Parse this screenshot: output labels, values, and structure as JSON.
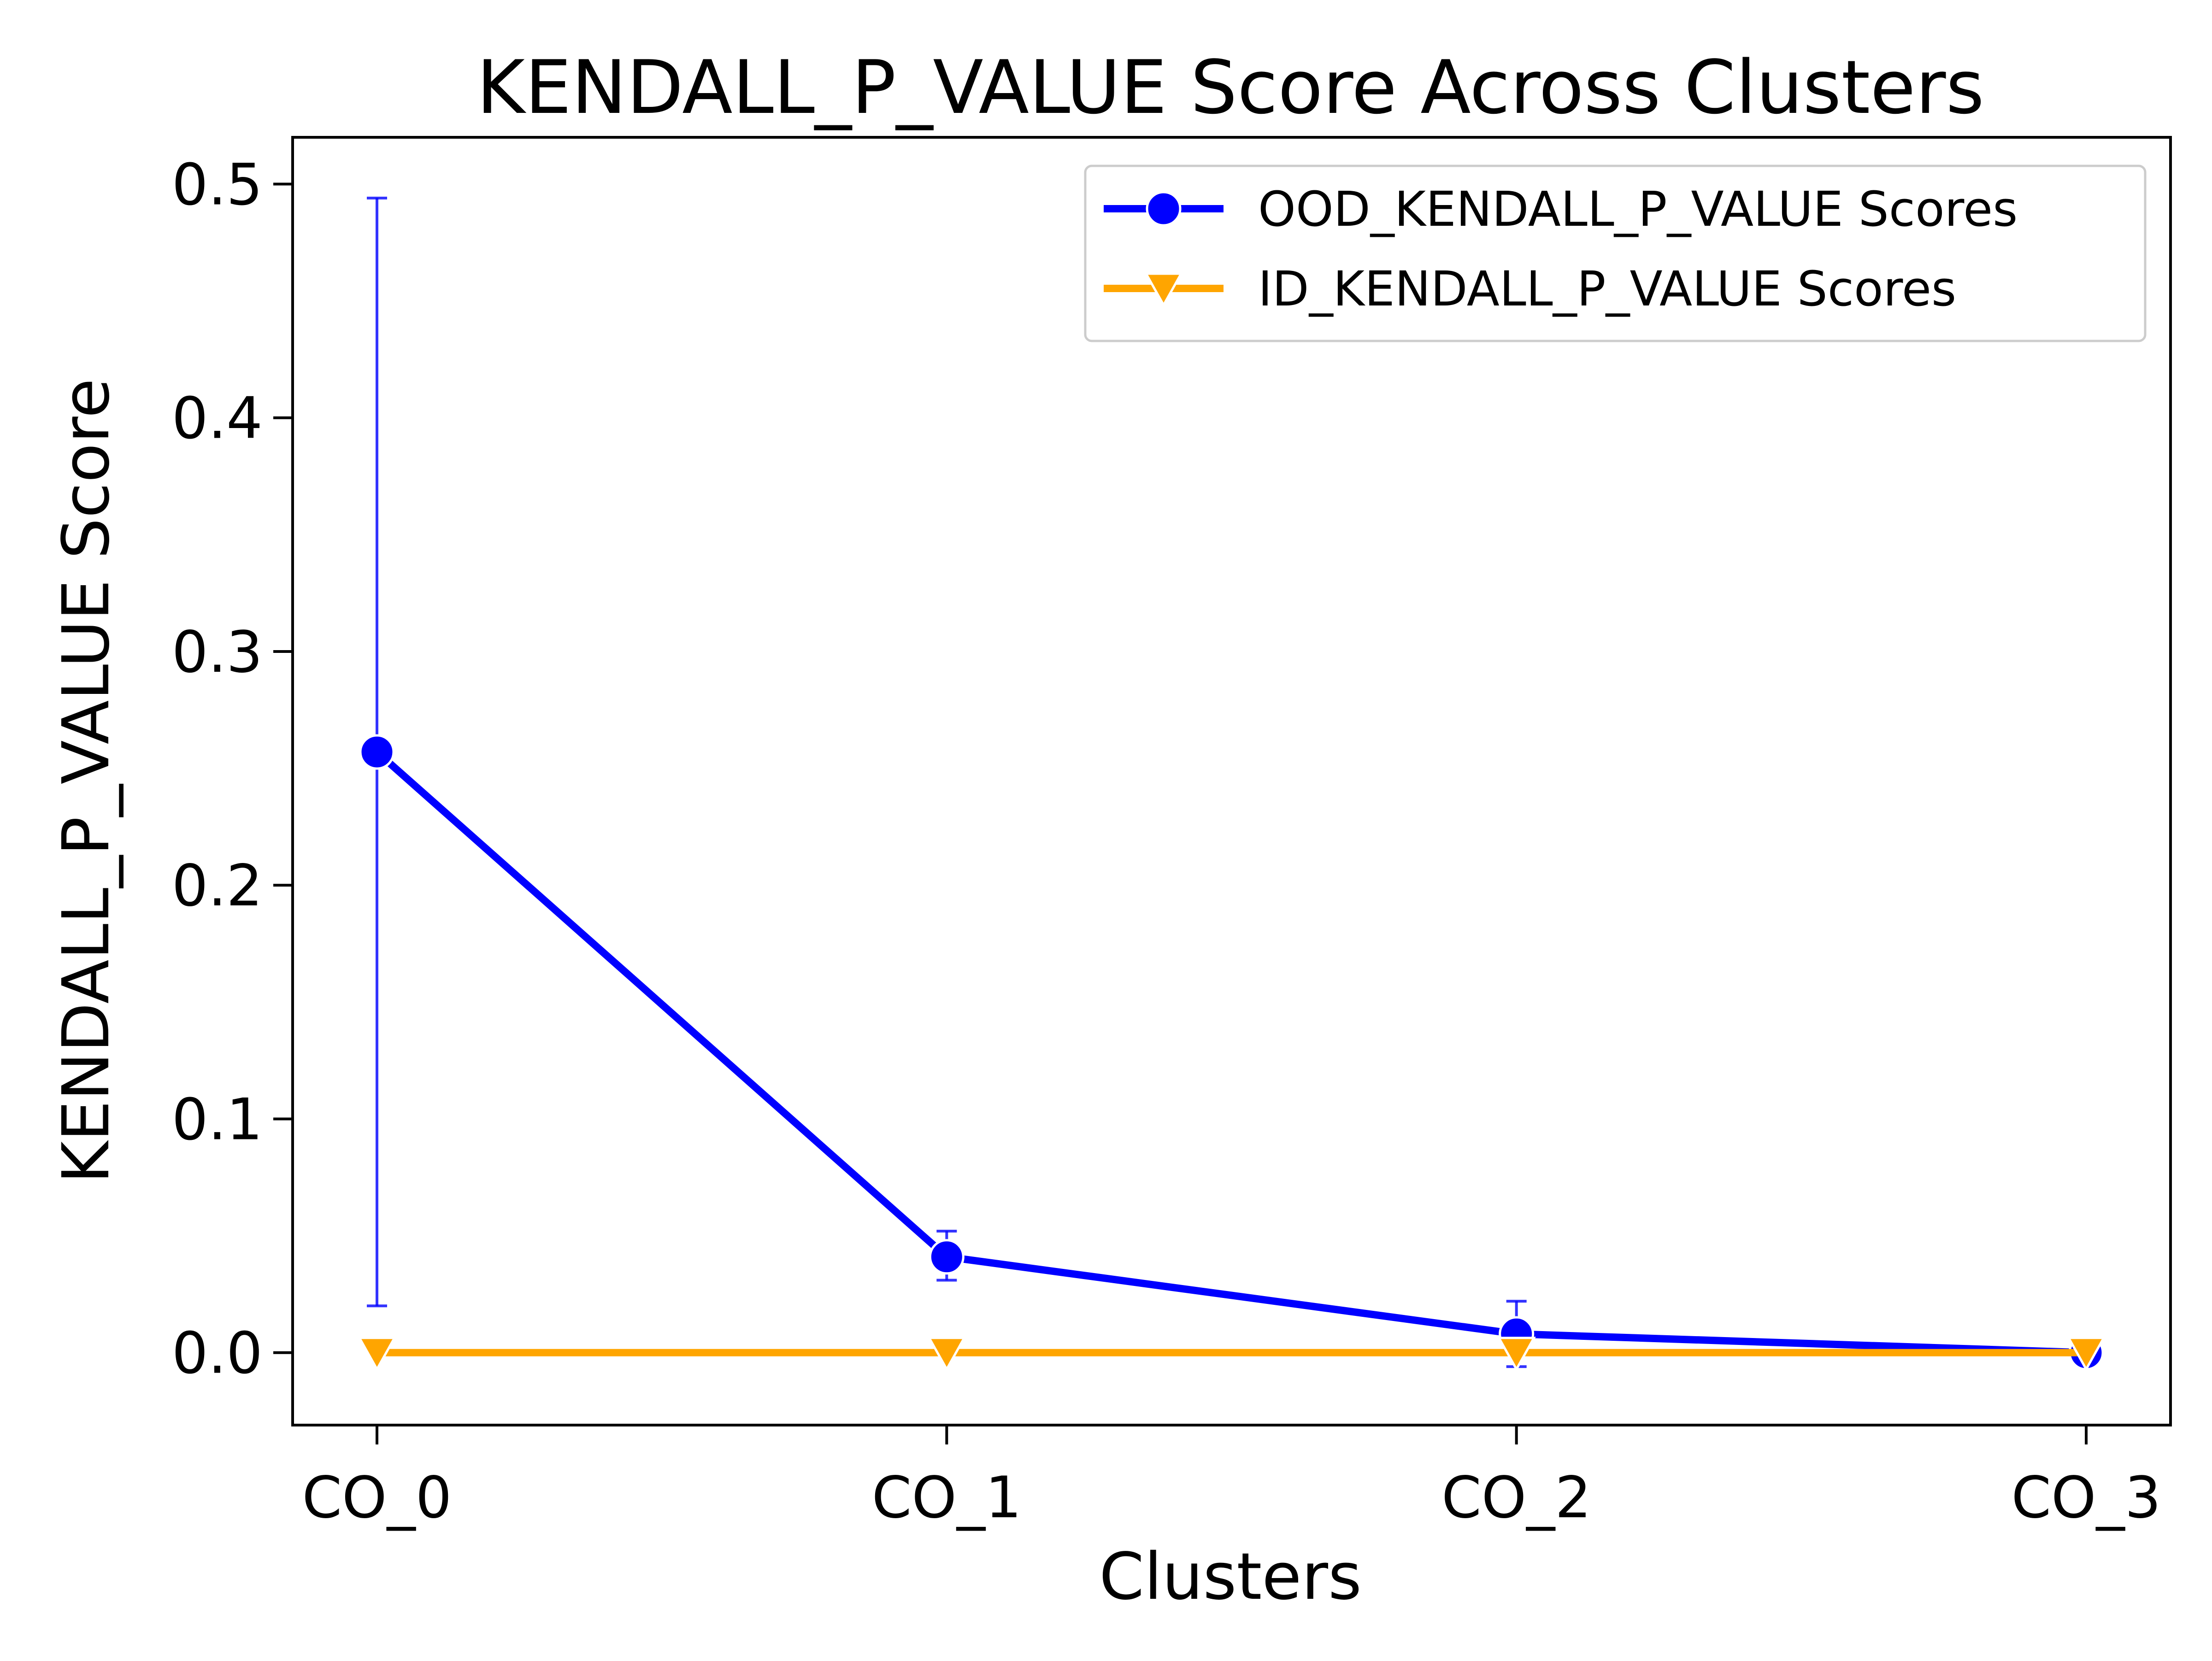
{
  "chart_data": {
    "type": "line",
    "title": "KENDALL_P_VALUE Score Across Clusters",
    "xlabel": "Clusters",
    "ylabel": "KENDALL_P_VALUE Score",
    "categories": [
      "CO_0",
      "CO_1",
      "CO_2",
      "CO_3"
    ],
    "ylim": [
      -0.031,
      0.52
    ],
    "yticks": [
      0.0,
      0.1,
      0.2,
      0.3,
      0.4,
      0.5
    ],
    "ytick_labels": [
      "0.0",
      "0.1",
      "0.2",
      "0.3",
      "0.4",
      "0.5"
    ],
    "grid": false,
    "legend_position": "top-right",
    "series": [
      {
        "name": "OOD_KENDALL_P_VALUE Scores",
        "color": "#0000ff",
        "marker": "circle",
        "values": [
          0.257,
          0.041,
          0.008,
          0.0
        ],
        "error_low": [
          0.02,
          0.031,
          -0.006,
          0.0
        ],
        "error_high": [
          0.494,
          0.052,
          0.022,
          0.0
        ]
      },
      {
        "name": "ID_KENDALL_P_VALUE Scores",
        "color": "#ffa500",
        "marker": "triangle-down",
        "values": [
          0.0,
          0.0,
          0.0,
          0.0
        ]
      }
    ]
  }
}
